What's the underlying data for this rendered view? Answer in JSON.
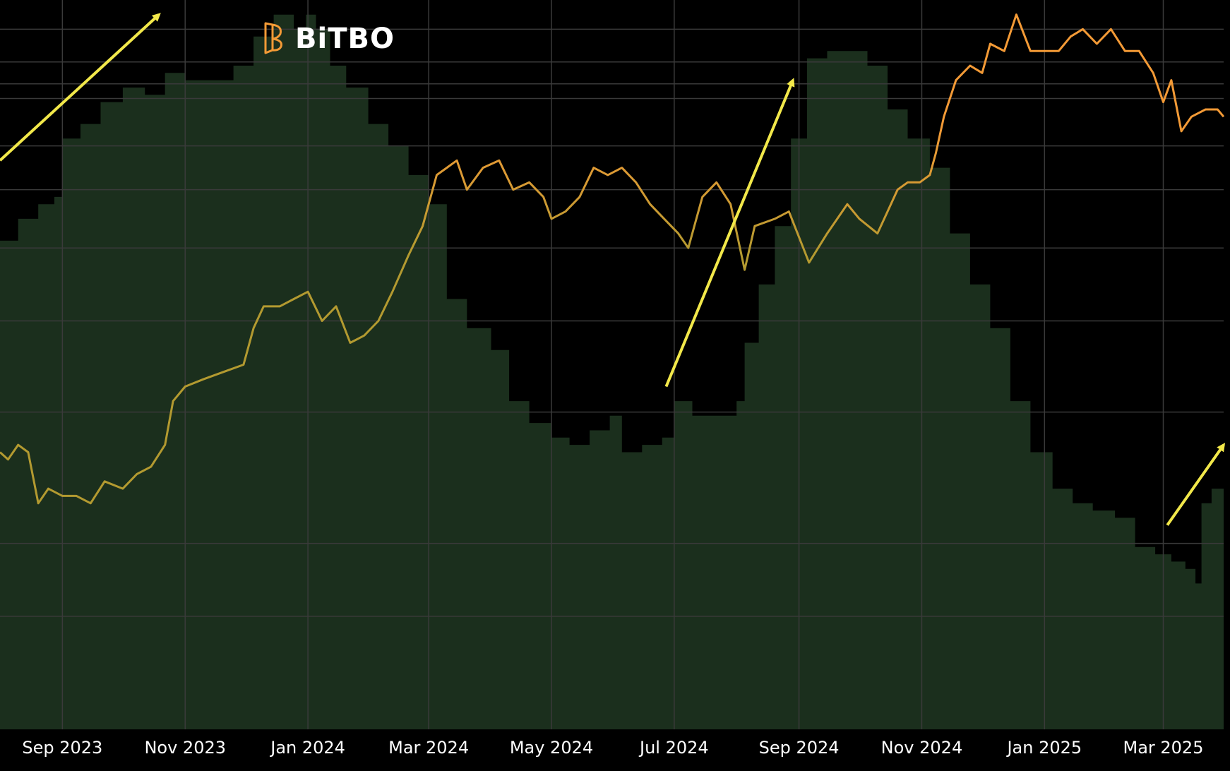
{
  "brand": {
    "logo_text": "BiTBO"
  },
  "colors": {
    "background": "#000000",
    "area_fill": "#1b2f1d",
    "gridline": "#3a3a3a",
    "price_low": "#b39a30",
    "price_high": "#f39a36",
    "arrow": "#f2e84a",
    "tick_text": "#ffffff"
  },
  "chart_data": {
    "type": "line",
    "title": "",
    "xlabel": "",
    "ylabel": "",
    "grid": true,
    "x_tick_labels": [
      "Sep 2023",
      "Nov 2023",
      "Jan 2024",
      "Mar 2024",
      "May 2024",
      "Jul 2024",
      "Sep 2024",
      "Nov 2024",
      "Jan 2025",
      "Mar 2025"
    ],
    "x_range": [
      "2023-08-01",
      "2025-03-31"
    ],
    "y_range_area": [
      0,
      100
    ],
    "y_range_price": [
      0,
      100
    ],
    "series": [
      {
        "kind": "area",
        "points": [
          [
            "2023-08-01",
            67
          ],
          [
            "2023-08-10",
            70
          ],
          [
            "2023-08-20",
            72
          ],
          [
            "2023-08-28",
            73
          ],
          [
            "2023-09-01",
            81
          ],
          [
            "2023-09-10",
            83
          ],
          [
            "2023-09-20",
            86
          ],
          [
            "2023-10-01",
            88
          ],
          [
            "2023-10-12",
            87
          ],
          [
            "2023-10-22",
            90
          ],
          [
            "2023-11-01",
            89
          ],
          [
            "2023-11-15",
            89
          ],
          [
            "2023-11-25",
            91
          ],
          [
            "2023-12-05",
            95
          ],
          [
            "2023-12-15",
            98
          ],
          [
            "2023-12-25",
            96
          ],
          [
            "2023-12-31",
            98
          ],
          [
            "2024-01-05",
            96
          ],
          [
            "2024-01-12",
            91
          ],
          [
            "2024-01-20",
            88
          ],
          [
            "2024-01-31",
            83
          ],
          [
            "2024-02-10",
            80
          ],
          [
            "2024-02-20",
            76
          ],
          [
            "2024-03-01",
            72
          ],
          [
            "2024-03-10",
            59
          ],
          [
            "2024-03-20",
            55
          ],
          [
            "2024-04-01",
            52
          ],
          [
            "2024-04-10",
            45
          ],
          [
            "2024-04-20",
            42
          ],
          [
            "2024-05-01",
            40
          ],
          [
            "2024-05-10",
            39
          ],
          [
            "2024-05-20",
            41
          ],
          [
            "2024-05-30",
            43
          ],
          [
            "2024-06-05",
            38
          ],
          [
            "2024-06-15",
            39
          ],
          [
            "2024-06-25",
            40
          ],
          [
            "2024-07-01",
            45
          ],
          [
            "2024-07-10",
            43
          ],
          [
            "2024-07-20",
            43
          ],
          [
            "2024-08-01",
            45
          ],
          [
            "2024-08-05",
            53
          ],
          [
            "2024-08-12",
            61
          ],
          [
            "2024-08-20",
            69
          ],
          [
            "2024-08-28",
            81
          ],
          [
            "2024-09-05",
            92
          ],
          [
            "2024-09-15",
            93
          ],
          [
            "2024-09-25",
            93
          ],
          [
            "2024-10-05",
            91
          ],
          [
            "2024-10-15",
            85
          ],
          [
            "2024-10-25",
            81
          ],
          [
            "2024-11-05",
            77
          ],
          [
            "2024-11-15",
            68
          ],
          [
            "2024-11-25",
            61
          ],
          [
            "2024-12-05",
            55
          ],
          [
            "2024-12-15",
            45
          ],
          [
            "2024-12-25",
            38
          ],
          [
            "2025-01-05",
            33
          ],
          [
            "2025-01-15",
            31
          ],
          [
            "2025-01-25",
            30
          ],
          [
            "2025-02-05",
            29
          ],
          [
            "2025-02-15",
            25
          ],
          [
            "2025-02-25",
            24
          ],
          [
            "2025-03-05",
            23
          ],
          [
            "2025-03-12",
            22
          ],
          [
            "2025-03-17",
            20
          ],
          [
            "2025-03-20",
            31
          ],
          [
            "2025-03-25",
            33
          ],
          [
            "2025-03-31",
            34
          ]
        ]
      },
      {
        "kind": "line",
        "points": [
          [
            "2023-08-01",
            38
          ],
          [
            "2023-08-05",
            37
          ],
          [
            "2023-08-10",
            39
          ],
          [
            "2023-08-15",
            38
          ],
          [
            "2023-08-20",
            31
          ],
          [
            "2023-08-25",
            33
          ],
          [
            "2023-09-01",
            32
          ],
          [
            "2023-09-08",
            32
          ],
          [
            "2023-09-15",
            31
          ],
          [
            "2023-09-22",
            34
          ],
          [
            "2023-10-01",
            33
          ],
          [
            "2023-10-08",
            35
          ],
          [
            "2023-10-15",
            36
          ],
          [
            "2023-10-22",
            39
          ],
          [
            "2023-10-26",
            45
          ],
          [
            "2023-11-01",
            47
          ],
          [
            "2023-11-10",
            48
          ],
          [
            "2023-11-20",
            49
          ],
          [
            "2023-11-30",
            50
          ],
          [
            "2023-12-05",
            55
          ],
          [
            "2023-12-10",
            58
          ],
          [
            "2023-12-18",
            58
          ],
          [
            "2023-12-25",
            59
          ],
          [
            "2024-01-01",
            60
          ],
          [
            "2024-01-08",
            56
          ],
          [
            "2024-01-15",
            58
          ],
          [
            "2024-01-22",
            53
          ],
          [
            "2024-01-29",
            54
          ],
          [
            "2024-02-05",
            56
          ],
          [
            "2024-02-12",
            60
          ],
          [
            "2024-02-20",
            65
          ],
          [
            "2024-02-27",
            69
          ],
          [
            "2024-03-01",
            72
          ],
          [
            "2024-03-05",
            76
          ],
          [
            "2024-03-10",
            77
          ],
          [
            "2024-03-15",
            78
          ],
          [
            "2024-03-20",
            74
          ],
          [
            "2024-03-28",
            77
          ],
          [
            "2024-04-05",
            78
          ],
          [
            "2024-04-12",
            74
          ],
          [
            "2024-04-20",
            75
          ],
          [
            "2024-04-27",
            73
          ],
          [
            "2024-05-01",
            70
          ],
          [
            "2024-05-08",
            71
          ],
          [
            "2024-05-15",
            73
          ],
          [
            "2024-05-22",
            77
          ],
          [
            "2024-05-29",
            76
          ],
          [
            "2024-06-05",
            77
          ],
          [
            "2024-06-12",
            75
          ],
          [
            "2024-06-19",
            72
          ],
          [
            "2024-06-26",
            70
          ],
          [
            "2024-07-03",
            68
          ],
          [
            "2024-07-08",
            66
          ],
          [
            "2024-07-15",
            73
          ],
          [
            "2024-07-22",
            75
          ],
          [
            "2024-07-29",
            72
          ],
          [
            "2024-08-05",
            63
          ],
          [
            "2024-08-10",
            69
          ],
          [
            "2024-08-20",
            70
          ],
          [
            "2024-08-27",
            71
          ],
          [
            "2024-09-06",
            64
          ],
          [
            "2024-09-15",
            68
          ],
          [
            "2024-09-25",
            72
          ],
          [
            "2024-10-01",
            70
          ],
          [
            "2024-10-10",
            68
          ],
          [
            "2024-10-15",
            71
          ],
          [
            "2024-10-20",
            74
          ],
          [
            "2024-10-25",
            75
          ],
          [
            "2024-10-31",
            75
          ],
          [
            "2024-11-05",
            76
          ],
          [
            "2024-11-08",
            79
          ],
          [
            "2024-11-12",
            84
          ],
          [
            "2024-11-18",
            89
          ],
          [
            "2024-11-25",
            91
          ],
          [
            "2024-12-01",
            90
          ],
          [
            "2024-12-05",
            94
          ],
          [
            "2024-12-12",
            93
          ],
          [
            "2024-12-18",
            98
          ],
          [
            "2024-12-25",
            93
          ],
          [
            "2025-01-01",
            93
          ],
          [
            "2025-01-08",
            93
          ],
          [
            "2025-01-14",
            95
          ],
          [
            "2025-01-20",
            96
          ],
          [
            "2025-01-27",
            94
          ],
          [
            "2025-02-03",
            96
          ],
          [
            "2025-02-10",
            93
          ],
          [
            "2025-02-17",
            93
          ],
          [
            "2025-02-24",
            90
          ],
          [
            "2025-03-01",
            86
          ],
          [
            "2025-03-05",
            89
          ],
          [
            "2025-03-10",
            82
          ],
          [
            "2025-03-15",
            84
          ],
          [
            "2025-03-22",
            85
          ],
          [
            "2025-03-28",
            85
          ],
          [
            "2025-03-31",
            84
          ]
        ]
      }
    ],
    "annotations": [
      {
        "kind": "arrow",
        "from": [
          "2023-08-01",
          78
        ],
        "to": [
          "2023-10-19",
          98
        ]
      },
      {
        "kind": "arrow",
        "from": [
          "2024-06-27",
          47
        ],
        "to": [
          "2024-08-29",
          89
        ]
      },
      {
        "kind": "arrow",
        "from": [
          "2025-03-03",
          28
        ],
        "to": [
          "2025-03-31",
          39
        ]
      }
    ]
  }
}
